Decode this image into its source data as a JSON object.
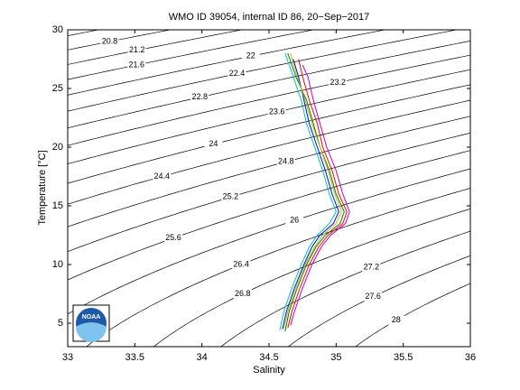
{
  "chart_data": {
    "type": "ts-diagram",
    "title": "WMO ID 39054, internal ID 86, 20−Sep−2017",
    "x_label": "Salinity",
    "y_label": "Temperature [°C]",
    "xlim": [
      33,
      36
    ],
    "ylim": [
      3,
      30
    ],
    "xticks": [
      33,
      33.5,
      34,
      34.5,
      35,
      35.5,
      36
    ],
    "yticks": [
      5,
      10,
      15,
      20,
      25,
      30
    ],
    "contour_levels": [
      20.4,
      20.8,
      21.2,
      21.6,
      22,
      22.4,
      22.8,
      23.2,
      23.6,
      24,
      24.4,
      24.8,
      25.2,
      25.6,
      26,
      26.4,
      26.8,
      27.2,
      27.6,
      28
    ],
    "contour_color": "#000000",
    "logo_text": "NOAA",
    "series": [
      {
        "color": "#0000ff",
        "x": [
          34.6,
          34.63,
          34.69,
          34.76,
          34.82,
          34.88,
          34.98,
          35.02,
          34.97,
          34.92,
          34.86,
          34.8,
          34.76,
          34.72,
          34.68
        ],
        "values": [
          4.5,
          6,
          8,
          10,
          11.5,
          12.5,
          13.5,
          14.5,
          16,
          18,
          20,
          22,
          24,
          26,
          27.5
        ]
      },
      {
        "color": "#008000",
        "x": [
          34.62,
          34.65,
          34.71,
          34.78,
          34.85,
          34.92,
          35.03,
          35.06,
          35.0,
          34.95,
          34.88,
          34.83,
          34.78,
          34.7,
          34.64
        ],
        "values": [
          4.3,
          6,
          8,
          10,
          11.5,
          12.5,
          13.5,
          14.5,
          16,
          18,
          20,
          22,
          24,
          26,
          28
        ]
      },
      {
        "color": "#ff0000",
        "x": [
          34.64,
          34.67,
          34.73,
          34.8,
          34.87,
          34.94,
          35.05,
          35.08,
          35.02,
          34.97,
          34.9,
          34.86,
          34.8,
          34.75,
          34.72
        ],
        "values": [
          4.6,
          6,
          8,
          10,
          11.5,
          12.5,
          13.5,
          14.5,
          16,
          18,
          20,
          22,
          24,
          26,
          27.5
        ]
      },
      {
        "color": "#00bfbf",
        "x": [
          34.58,
          34.61,
          34.67,
          34.74,
          34.8,
          34.86,
          34.95,
          35.0,
          34.95,
          34.9,
          34.84,
          34.78,
          34.74,
          34.68,
          34.62
        ],
        "values": [
          4.4,
          6,
          8,
          10,
          11.5,
          12.5,
          13.5,
          14.5,
          16,
          18,
          20,
          22,
          24,
          26,
          28
        ]
      },
      {
        "color": "#bf00bf",
        "x": [
          34.66,
          34.69,
          34.75,
          34.82,
          34.89,
          34.96,
          35.07,
          35.1,
          35.05,
          35.0,
          34.93,
          34.88,
          34.83,
          34.79,
          34.75
        ],
        "values": [
          4.8,
          6,
          8,
          10,
          11.5,
          12.5,
          13.5,
          14.5,
          16,
          18,
          20,
          22,
          24,
          26,
          27
        ]
      },
      {
        "color": "#bfbf00",
        "x": [
          34.61,
          34.64,
          34.7,
          34.77,
          34.84,
          34.9,
          35.0,
          35.04,
          34.99,
          34.94,
          34.88,
          34.82,
          34.77,
          34.71,
          34.66
        ],
        "values": [
          4.5,
          6,
          8,
          10,
          11.5,
          12.5,
          13.5,
          14.5,
          16,
          18,
          20,
          22,
          24,
          26,
          28
        ]
      }
    ]
  }
}
